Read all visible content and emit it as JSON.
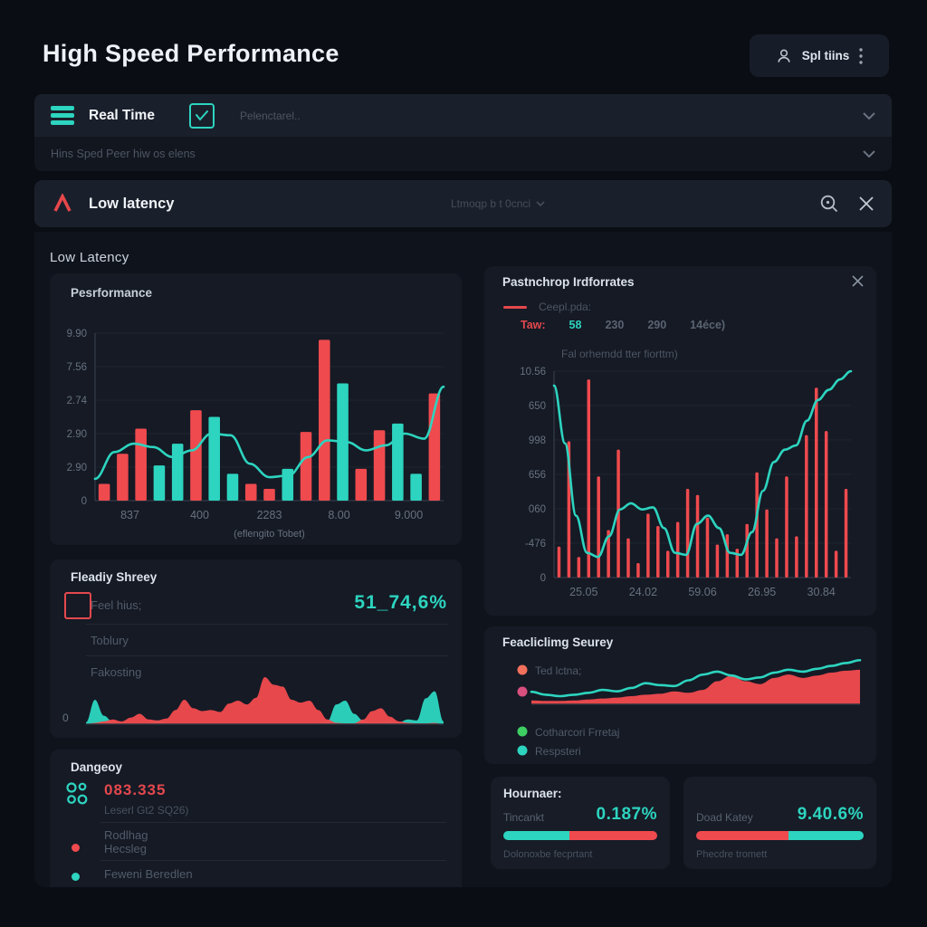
{
  "colors": {
    "red": "#ef4a4e",
    "teal": "#2dd4bf",
    "orange": "#f2705c",
    "pink": "#d94f7e",
    "green": "#3ecf63",
    "muted": "#5a6471"
  },
  "header": {
    "title": "High Speed Performance",
    "user_label": "Spl tiins"
  },
  "toolbar": {
    "realtime_label": "Real Time",
    "option_label": "Pelenctarel..",
    "row2_label": "Hins Sped Peer hiw os elens"
  },
  "searchbar": {
    "label": "Low latency",
    "query": "Ltmoqp b t 0cnci",
    "section_heading": "Low Latency"
  },
  "panels": {
    "performance": {
      "title": "Pesrformance"
    },
    "ready": {
      "title": "Fleadiy Shreey",
      "metric_label": "Feel hius;",
      "metric_value": "51_74,6%",
      "row2": "Toblury",
      "row3": "Fakosting",
      "zero": "0"
    },
    "dangeoy": {
      "title": "Dangeoy",
      "value": "083.335",
      "subtitle": "Leserl Gt2 SQ26)",
      "row1": "Rodlhag",
      "row2": "Hecsleg",
      "row3": "Feweni Beredlen"
    },
    "pastnchrop": {
      "title": "Pastnchrop Irdforrates",
      "legend_label": "Ceepl.pda:",
      "legend_values": [
        {
          "text": "Taw:",
          "color": "#e4484d"
        },
        {
          "text": "58",
          "color": "#2dd4bf"
        },
        {
          "text": "230",
          "color": "#5a6471"
        },
        {
          "text": "290",
          "color": "#5a6471"
        },
        {
          "text": "14éce)",
          "color": "#5a6471"
        }
      ],
      "subtitle": "Fal orhemdd tter fiorttm)"
    },
    "feacliclimg": {
      "title": "Feacliclimg Seurey",
      "legend": [
        {
          "color": "#f2705c",
          "label": "Ted lctna;"
        },
        {
          "color": "#d94f7e",
          "label": ""
        },
        {
          "color": "#3ecf63",
          "label": "Cotharcori Frretaj"
        },
        {
          "color": "#2dd4bf",
          "label": "Respsteri"
        }
      ]
    },
    "hournaer": {
      "title": "Hournaer:",
      "label": "Tincankt",
      "value": "0.187%",
      "footer": "Dolonoxbe fecprtant",
      "progress": {
        "first_color": "teal",
        "second_color": "red",
        "first_pct": 43
      }
    },
    "doad": {
      "label": "Doad Katey",
      "value": "9.40.6%",
      "footer": "Phecdre tromett",
      "progress": {
        "first_color": "red",
        "second_color": "teal",
        "first_pct": 55
      }
    }
  },
  "chart_data": [
    {
      "type": "bar",
      "title": "Pesrformance",
      "xlabel": "(eflengito Tobet)",
      "ylim": [
        0,
        10
      ],
      "ytick_labels": [
        "9.90",
        "7.56",
        "2.74",
        "2.90",
        "2.90",
        "0"
      ],
      "xtick_labels": [
        "837",
        "400",
        "2283",
        "8.00",
        "9.000"
      ],
      "bars": [
        {
          "color": "red",
          "value": 1.0
        },
        {
          "color": "red",
          "value": 2.8
        },
        {
          "color": "red",
          "value": 4.3
        },
        {
          "color": "teal",
          "value": 2.1
        },
        {
          "color": "teal",
          "value": 3.4
        },
        {
          "color": "red",
          "value": 5.4
        },
        {
          "color": "teal",
          "value": 5.0
        },
        {
          "color": "teal",
          "value": 1.6
        },
        {
          "color": "red",
          "value": 1.0
        },
        {
          "color": "red",
          "value": 0.7
        },
        {
          "color": "teal",
          "value": 1.9
        },
        {
          "color": "red",
          "value": 4.1
        },
        {
          "color": "red",
          "value": 9.6
        },
        {
          "color": "teal",
          "value": 7.0
        },
        {
          "color": "red",
          "value": 1.9
        },
        {
          "color": "red",
          "value": 4.2
        },
        {
          "color": "teal",
          "value": 4.6
        },
        {
          "color": "teal",
          "value": 1.6
        },
        {
          "color": "red",
          "value": 6.4
        }
      ],
      "line": {
        "color": "teal",
        "values": [
          1.3,
          2.9,
          3.4,
          3.2,
          2.6,
          3.0,
          4.0,
          3.9,
          2.2,
          1.4,
          1.5,
          2.6,
          3.6,
          3.5,
          3.0,
          3.3,
          4.0,
          3.7,
          6.8
        ]
      }
    },
    {
      "type": "bar",
      "title": "Pastnchrop Irdforrates",
      "ylim": [
        0,
        10
      ],
      "ytick_labels": [
        "10.56",
        "650",
        "998",
        "656",
        "060",
        "-476",
        "0"
      ],
      "xtick_labels": [
        "25.05",
        "24.02",
        "59.06",
        "26.95",
        "30.84"
      ],
      "bars": [
        {
          "color": "red",
          "value": 1.5
        },
        {
          "color": "red",
          "value": 6.6
        },
        {
          "color": "red",
          "value": 1.0
        },
        {
          "color": "red",
          "value": 9.6
        },
        {
          "color": "red",
          "value": 4.9
        },
        {
          "color": "red",
          "value": 2.3
        },
        {
          "color": "red",
          "value": 6.2
        },
        {
          "color": "red",
          "value": 1.9
        },
        {
          "color": "red",
          "value": 0.7
        },
        {
          "color": "red",
          "value": 3.1
        },
        {
          "color": "red",
          "value": 2.5
        },
        {
          "color": "red",
          "value": 1.3
        },
        {
          "color": "red",
          "value": 2.7
        },
        {
          "color": "red",
          "value": 4.3
        },
        {
          "color": "red",
          "value": 4.0
        },
        {
          "color": "red",
          "value": 2.9
        },
        {
          "color": "red",
          "value": 1.6
        },
        {
          "color": "red",
          "value": 2.1
        },
        {
          "color": "red",
          "value": 1.4
        },
        {
          "color": "red",
          "value": 2.6
        },
        {
          "color": "red",
          "value": 5.1
        },
        {
          "color": "red",
          "value": 3.3
        },
        {
          "color": "red",
          "value": 1.9
        },
        {
          "color": "red",
          "value": 4.9
        },
        {
          "color": "red",
          "value": 2.0
        },
        {
          "color": "red",
          "value": 6.9
        },
        {
          "color": "red",
          "value": 9.2
        },
        {
          "color": "red",
          "value": 7.1
        },
        {
          "color": "red",
          "value": 1.3
        },
        {
          "color": "red",
          "value": 4.3
        }
      ],
      "line": {
        "color": "teal",
        "values": [
          9.3,
          6.5,
          3.0,
          1.2,
          1.0,
          2.0,
          3.3,
          3.6,
          3.3,
          3.4,
          2.4,
          1.2,
          1.1,
          2.6,
          3.0,
          2.4,
          1.2,
          1.1,
          2.2,
          4.2,
          5.6,
          6.2,
          6.4,
          7.6,
          8.6,
          9.1,
          9.6,
          10.0
        ]
      }
    },
    {
      "type": "area",
      "title": "Fleadiy Shreey sparkline",
      "ylim": [
        0,
        1
      ],
      "series": [
        {
          "name": "teal",
          "color": "teal",
          "kind": "area",
          "values": [
            0.04,
            0.52,
            0.18,
            0.05,
            0.03,
            0.02,
            0.02,
            0.02,
            0.08,
            0.03,
            0.02,
            0.02,
            0.02,
            0.02,
            0.02,
            0.02,
            0.02,
            0.02,
            0.02,
            0.02,
            0.02,
            0.02,
            0.02,
            0.02,
            0.02,
            0.02,
            0.03,
            0.06,
            0.42,
            0.5,
            0.22,
            0.08,
            0.04,
            0.04,
            0.06,
            0.04,
            0.1,
            0.08,
            0.55,
            0.7,
            0.06
          ]
        },
        {
          "name": "red",
          "color": "red",
          "kind": "area",
          "values": [
            0.0,
            0.03,
            0.06,
            0.1,
            0.06,
            0.14,
            0.22,
            0.1,
            0.08,
            0.12,
            0.3,
            0.52,
            0.34,
            0.28,
            0.3,
            0.26,
            0.44,
            0.5,
            0.42,
            0.56,
            1.0,
            0.84,
            0.8,
            0.52,
            0.46,
            0.5,
            0.3,
            0.1,
            0.03,
            0.02,
            0.02,
            0.1,
            0.28,
            0.34,
            0.16,
            0.06,
            0.03,
            0.02,
            0.02,
            0.03,
            0.0
          ]
        }
      ]
    },
    {
      "type": "area",
      "title": "Feacliclimg Seurey trend",
      "ylim": [
        0,
        1
      ],
      "series": [
        {
          "name": "red-area",
          "color": "red",
          "kind": "area",
          "values": [
            0.08,
            0.07,
            0.07,
            0.08,
            0.1,
            0.12,
            0.14,
            0.17,
            0.2,
            0.22,
            0.27,
            0.24,
            0.3,
            0.48,
            0.6,
            0.48,
            0.42,
            0.55,
            0.62,
            0.55,
            0.6,
            0.66,
            0.7,
            0.72
          ]
        },
        {
          "name": "teal-line",
          "color": "teal",
          "kind": "line",
          "values": [
            0.26,
            0.2,
            0.17,
            0.2,
            0.24,
            0.3,
            0.27,
            0.34,
            0.44,
            0.4,
            0.38,
            0.5,
            0.62,
            0.68,
            0.6,
            0.52,
            0.56,
            0.66,
            0.72,
            0.68,
            0.74,
            0.8,
            0.86,
            0.92
          ]
        }
      ]
    }
  ]
}
